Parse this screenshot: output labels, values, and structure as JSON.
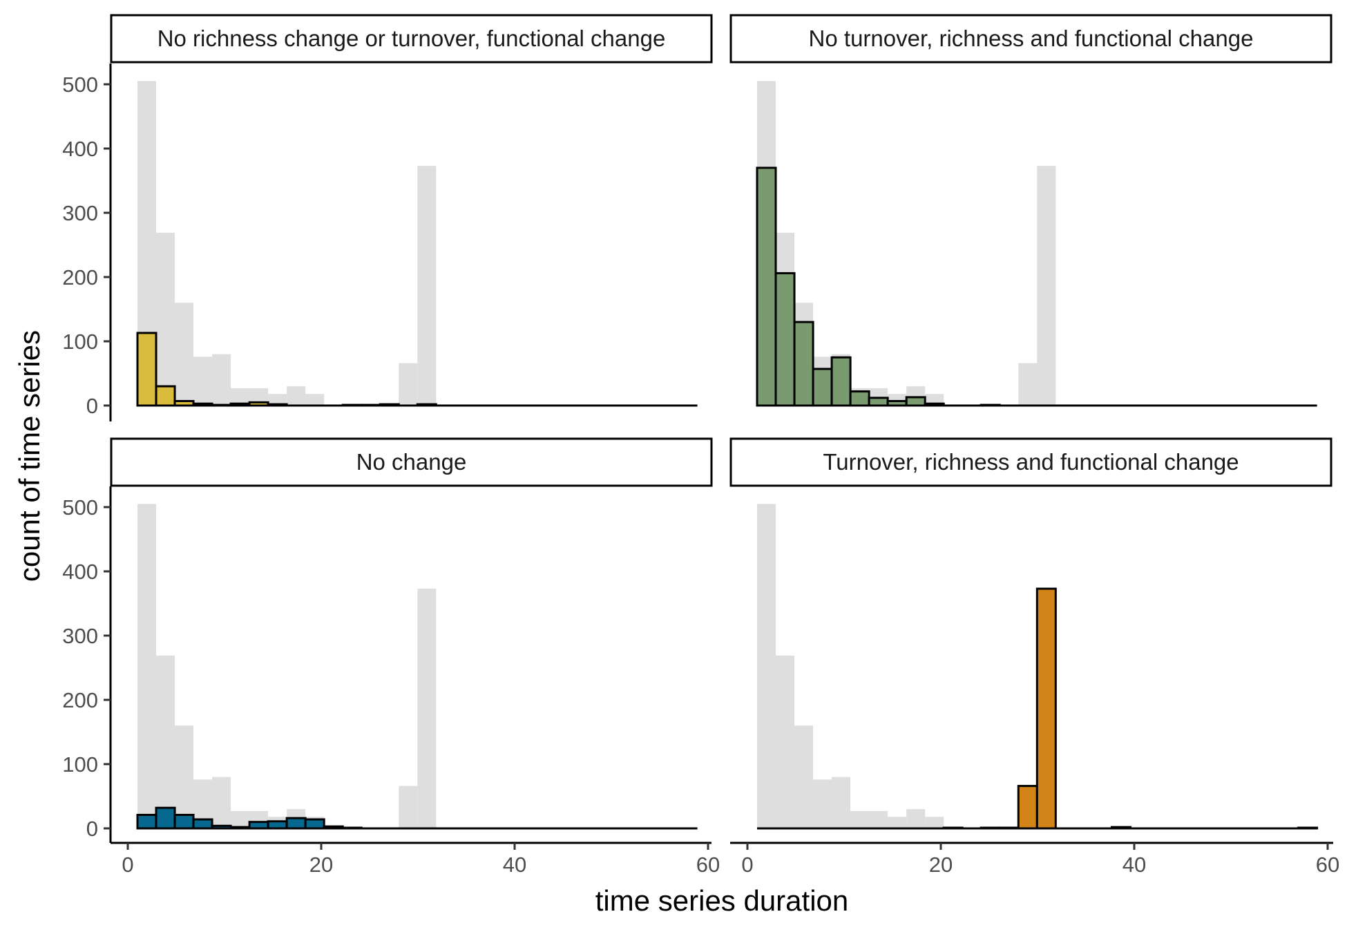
{
  "chart_data": {
    "type": "bar",
    "subtype": "faceted-histogram",
    "xlabel": "time series duration",
    "ylabel": "count of time series",
    "xlim": [
      0,
      60
    ],
    "ylim": [
      0,
      500
    ],
    "x_ticks": [
      0,
      20,
      40,
      60
    ],
    "y_ticks": [
      0,
      100,
      200,
      300,
      400,
      500
    ],
    "grid": false,
    "bin_width": 1.93,
    "bin_starts": [
      1,
      2.93,
      4.86,
      6.79,
      8.72,
      10.65,
      12.58,
      14.51,
      16.44,
      18.37,
      20.3,
      22.23,
      24.16,
      26.09,
      28.02,
      29.95,
      31.88,
      33.81,
      35.74,
      37.67,
      39.6,
      41.53,
      43.46,
      45.39,
      47.32,
      49.25,
      51.18,
      53.11,
      55.04,
      56.97
    ],
    "background": {
      "color": "#dedede",
      "values": [
        505,
        269,
        160,
        76,
        80,
        27,
        27,
        18,
        30,
        18,
        0,
        0,
        0,
        0,
        66,
        373,
        0,
        0,
        0,
        0,
        0,
        0,
        0,
        0,
        0,
        0,
        0,
        0,
        0,
        0
      ]
    },
    "facets": [
      {
        "label": "No richness change or turnover, functional change",
        "color": "#d9bc3c",
        "values": [
          113,
          30,
          7,
          3,
          1,
          3,
          5,
          2,
          0,
          0,
          0,
          1,
          1,
          2,
          0,
          2,
          0,
          0,
          0,
          0,
          0,
          0,
          0,
          0,
          0,
          0,
          0,
          0,
          0,
          0
        ]
      },
      {
        "label": "No turnover, richness and functional change",
        "color": "#7a9a6f",
        "values": [
          370,
          206,
          130,
          57,
          75,
          22,
          12,
          7,
          13,
          3,
          0,
          0,
          1,
          0,
          0,
          0,
          0,
          0,
          0,
          0,
          0,
          0,
          0,
          0,
          0,
          0,
          0,
          0,
          0,
          0
        ]
      },
      {
        "label": "No change",
        "color": "#06688e",
        "values": [
          21,
          32,
          21,
          14,
          4,
          2,
          10,
          11,
          16,
          14,
          3,
          1,
          0,
          0,
          0,
          0,
          0,
          0,
          0,
          0,
          0,
          0,
          0,
          0,
          0,
          0,
          0,
          0,
          0,
          0
        ]
      },
      {
        "label": "Turnover, richness and functional change",
        "color": "#d28418",
        "values": [
          0,
          0,
          0,
          0,
          0,
          0,
          0,
          0,
          0,
          0,
          1,
          0,
          1,
          1,
          66,
          373,
          0,
          0,
          0,
          2,
          0,
          0,
          0,
          0,
          0,
          0,
          0,
          0,
          0,
          1
        ]
      }
    ]
  }
}
